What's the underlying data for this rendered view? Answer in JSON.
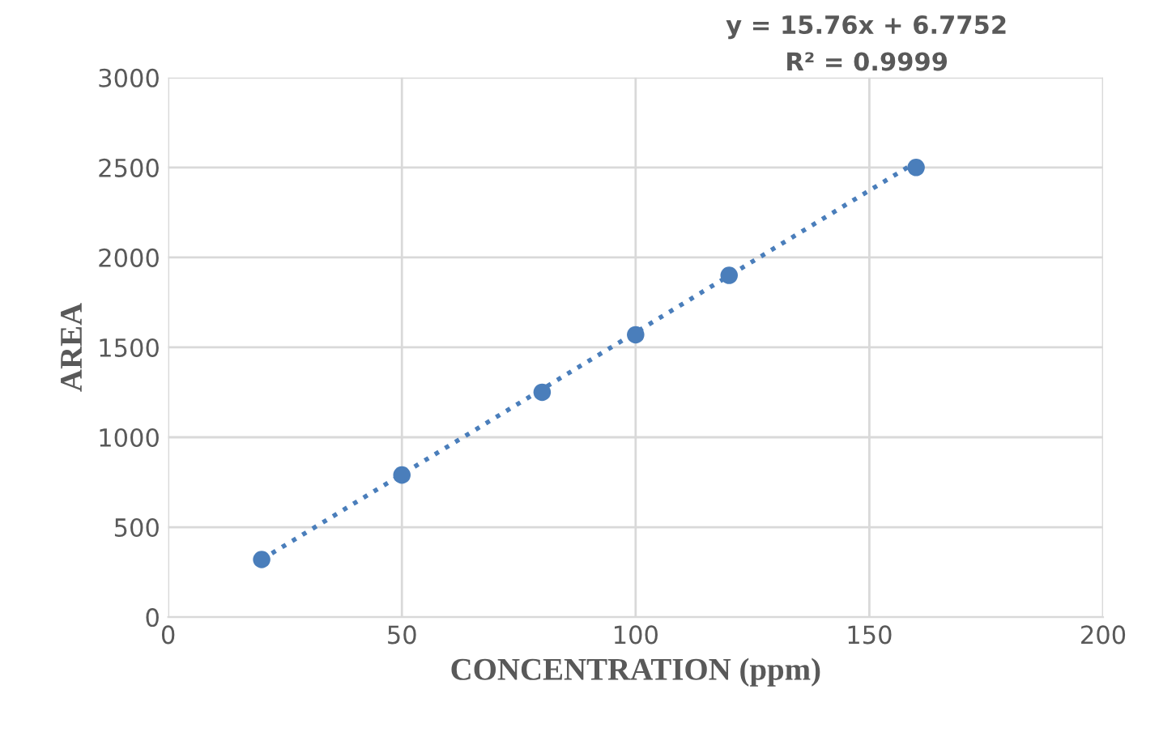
{
  "chart_data": {
    "type": "scatter",
    "xlabel": "CONCENTRATION (ppm)",
    "ylabel": "AREA",
    "annotations": [
      "y = 15.76x + 6.7752",
      "R² = 0.9999"
    ],
    "series": [
      {
        "color": "#4a7ebb",
        "x": [
          20,
          50,
          80,
          100,
          120,
          160
        ],
        "values": [
          320,
          790,
          1250,
          1570,
          1900,
          2500
        ],
        "marker": "circle"
      },
      {
        "type": "line",
        "color": "#4a7ebb",
        "x": [
          20,
          160
        ],
        "values": [
          320,
          2530
        ],
        "line_style": "dotted",
        "marker": "none"
      }
    ],
    "xlim": [
      0,
      200
    ],
    "xticks": [
      0,
      50,
      100,
      150,
      200
    ],
    "ylim": [
      0,
      3000
    ],
    "yticks": [
      0,
      500,
      1000,
      1500,
      2000,
      2500,
      3000
    ],
    "grid": true,
    "legend": false
  }
}
